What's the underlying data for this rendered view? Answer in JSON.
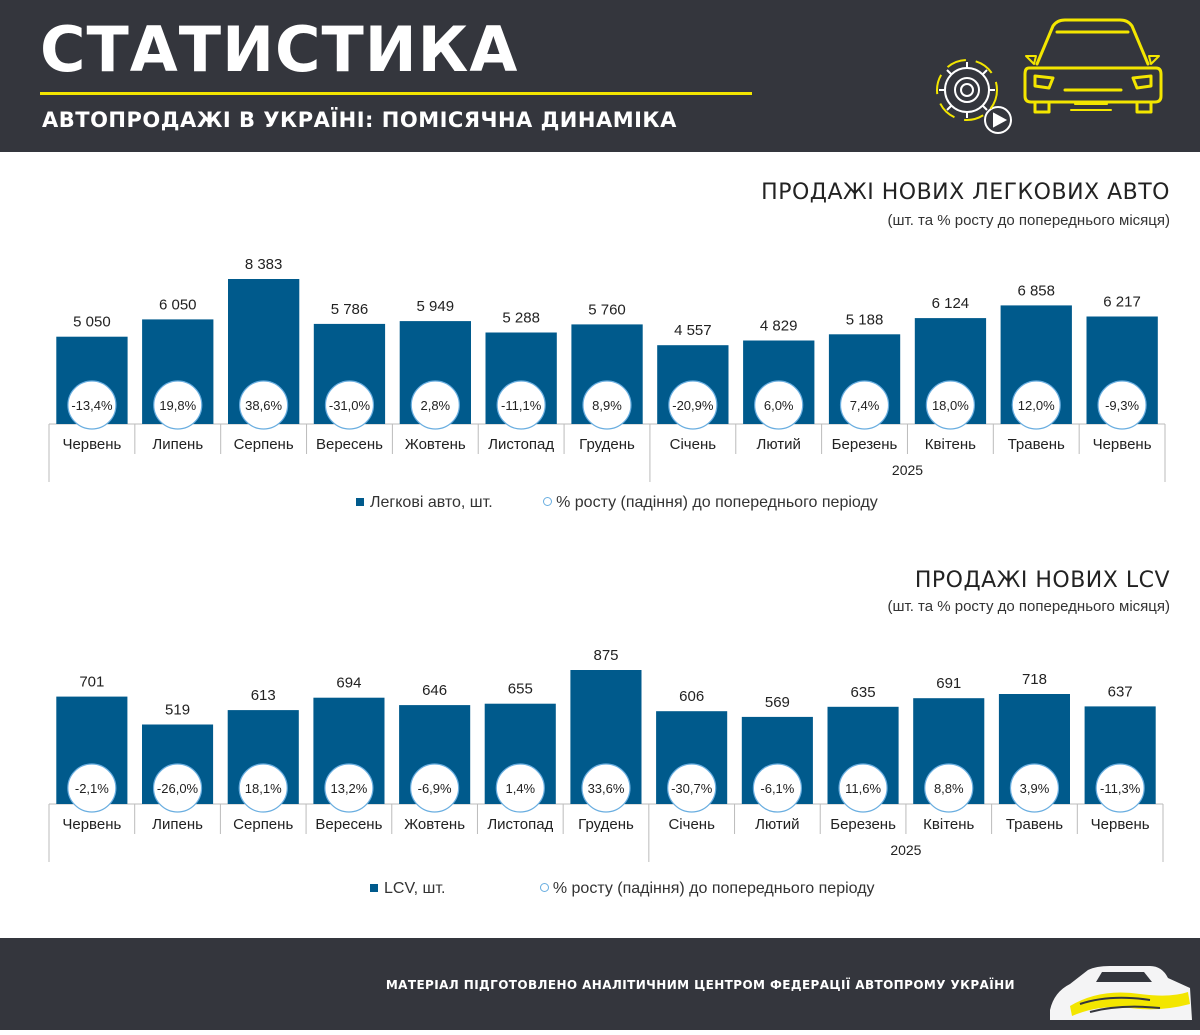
{
  "header": {
    "title": "СТАТИСТИКА",
    "subtitle": "АВТОПРОДАЖІ В УКРАЇНІ: ПОМІСЯЧНА ДИНАМІКА",
    "icon": "car-gear-play-icon"
  },
  "colors": {
    "bar": "#005a8c",
    "accent": "#f3e600",
    "header_bg": "#34363d",
    "circle_border": "#6aaee0"
  },
  "chart_data": [
    {
      "type": "bar",
      "title": "ПРОДАЖІ НОВИХ ЛЕГКОВИХ АВТО",
      "subtitle": "(шт. та % росту до попереднього місяця)",
      "categories": [
        "Червень",
        "Липень",
        "Серпень",
        "Вересень",
        "Жовтень",
        "Листопад",
        "Грудень",
        "Січень",
        "Лютий",
        "Березень",
        "Квітень",
        "Травень",
        "Червень"
      ],
      "year_group": {
        "label": "2025",
        "from_index": 7
      },
      "series": [
        {
          "name": "Легкові авто, шт.",
          "values": [
            5050,
            6050,
            8383,
            5786,
            5949,
            5288,
            5760,
            4557,
            4829,
            5188,
            6124,
            6858,
            6217
          ]
        },
        {
          "name": "% росту (падіння) до попереднього періоду",
          "values": [
            -13.4,
            19.8,
            38.6,
            -31.0,
            2.8,
            -11.1,
            8.9,
            -20.9,
            6.0,
            7.4,
            18.0,
            12.0,
            -9.3
          ]
        }
      ],
      "value_labels": [
        "5 050",
        "6 050",
        "8 383",
        "5 786",
        "5 949",
        "5 288",
        "5 760",
        "4 557",
        "4 829",
        "5 188",
        "6 124",
        "6 858",
        "6 217"
      ],
      "pct_labels": [
        "-13,4%",
        "19,8%",
        "38,6%",
        "-31,0%",
        "2,8%",
        "-11,1%",
        "8,9%",
        "-20,9%",
        "6,0%",
        "7,4%",
        "18,0%",
        "12,0%",
        "-9,3%"
      ],
      "ylim": [
        0,
        8383
      ],
      "legend": {
        "bar_label": "Легкові авто, шт.",
        "pct_label": "% росту  (падіння) до попереднього періоду",
        "position": "bottom"
      }
    },
    {
      "type": "bar",
      "title": "ПРОДАЖІ НОВИХ  LCV",
      "subtitle": "(шт. та % росту до попереднього місяця)",
      "categories": [
        "Червень",
        "Липень",
        "Серпень",
        "Вересень",
        "Жовтень",
        "Листопад",
        "Грудень",
        "Січень",
        "Лютий",
        "Березень",
        "Квітень",
        "Травень",
        "Червень"
      ],
      "year_group": {
        "label": "2025",
        "from_index": 7
      },
      "series": [
        {
          "name": "LCV, шт.",
          "values": [
            701,
            519,
            613,
            694,
            646,
            655,
            875,
            606,
            569,
            635,
            691,
            718,
            637
          ]
        },
        {
          "name": "% росту (падіння) до попереднього періоду",
          "values": [
            -2.1,
            -26.0,
            18.1,
            13.2,
            -6.9,
            1.4,
            33.6,
            -30.7,
            -6.1,
            11.6,
            8.8,
            3.9,
            -11.3
          ]
        }
      ],
      "value_labels": [
        "701",
        "519",
        "613",
        "694",
        "646",
        "655",
        "875",
        "606",
        "569",
        "635",
        "691",
        "718",
        "637"
      ],
      "pct_labels": [
        "-2,1%",
        "-26,0%",
        "18,1%",
        "13,2%",
        "-6,9%",
        "1,4%",
        "33,6%",
        "-30,7%",
        "-6,1%",
        "11,6%",
        "8,8%",
        "3,9%",
        "-11,3%"
      ],
      "ylim": [
        0,
        875
      ],
      "legend": {
        "bar_label": "LCV, шт.",
        "pct_label": "% росту  (падіння) до попереднього періоду",
        "position": "bottom"
      }
    }
  ],
  "footer": {
    "note": "МАТЕРІАЛ ПІДГОТОВЛЕНО АНАЛІТИЧНИМ ЦЕНТРОМ ФЕДЕРАЦІЇ АВТОПРОМУ УКРАЇНИ",
    "logo": "federation-car-logo-icon"
  }
}
